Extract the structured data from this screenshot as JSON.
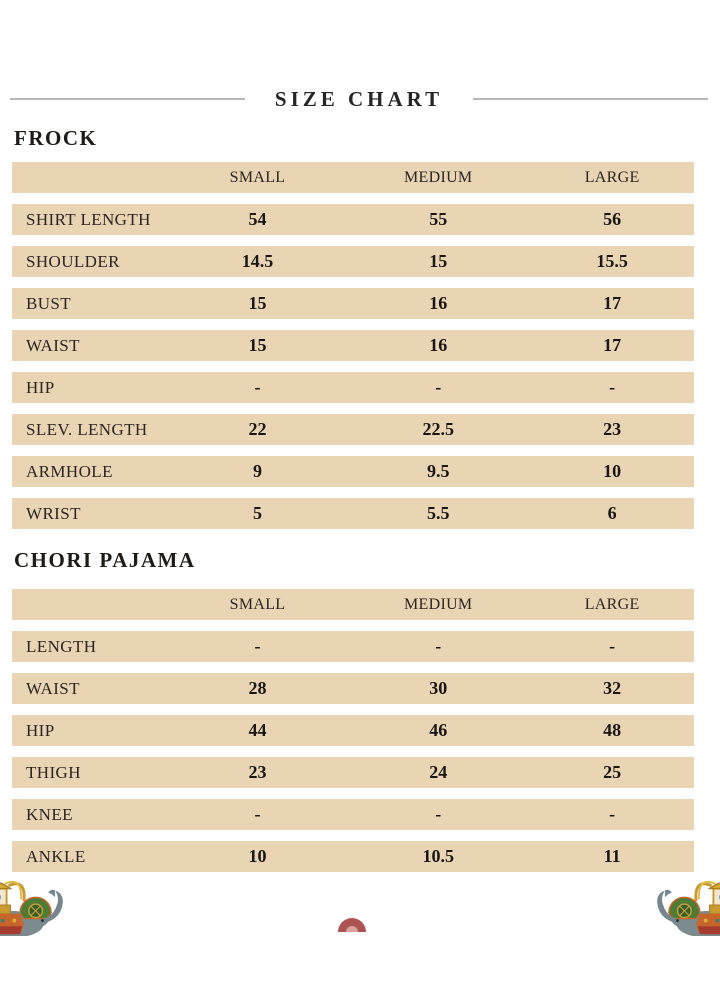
{
  "page": {
    "title": "SIZE CHART"
  },
  "colors": {
    "row_background": "#e9d4b4",
    "text": "#211d1a",
    "divider_line": "#b9b9b9",
    "fan_red": "#ae5353",
    "fan_inner_pink": "#d9a49e"
  },
  "sections": [
    {
      "heading": "FROCK",
      "columns": [
        "SMALL",
        "MEDIUM",
        "LARGE"
      ],
      "rows": [
        {
          "label": "SHIRT LENGTH",
          "values": [
            "54",
            "55",
            "56"
          ]
        },
        {
          "label": "SHOULDER",
          "values": [
            "14.5",
            "15",
            "15.5"
          ]
        },
        {
          "label": "BUST",
          "values": [
            "15",
            "16",
            "17"
          ]
        },
        {
          "label": "WAIST",
          "values": [
            "15",
            "16",
            "17"
          ]
        },
        {
          "label": "HIP",
          "values": [
            "-",
            "-",
            "-"
          ]
        },
        {
          "label": "SLEV. LENGTH",
          "values": [
            "22",
            "22.5",
            "23"
          ]
        },
        {
          "label": "ARMHOLE",
          "values": [
            "9",
            "9.5",
            "10"
          ]
        },
        {
          "label": "WRIST",
          "values": [
            "5",
            "5.5",
            "6"
          ]
        }
      ]
    },
    {
      "heading": "CHORI PAJAMA",
      "columns": [
        "SMALL",
        "MEDIUM",
        "LARGE"
      ],
      "rows": [
        {
          "label": "LENGTH",
          "values": [
            "-",
            "-",
            "-"
          ]
        },
        {
          "label": "WAIST",
          "values": [
            "28",
            "30",
            "32"
          ]
        },
        {
          "label": "HIP",
          "values": [
            "44",
            "46",
            "48"
          ]
        },
        {
          "label": "THIGH",
          "values": [
            "23",
            "24",
            "25"
          ]
        },
        {
          "label": "KNEE",
          "values": [
            "-",
            "-",
            "-"
          ]
        },
        {
          "label": "ANKLE",
          "values": [
            "10",
            "10.5",
            "11"
          ]
        }
      ]
    }
  ],
  "decorations": {
    "bottom_left": "decorated-elephant-illustration",
    "bottom_right": "decorated-elephant-illustration-mirrored",
    "bottom_center": "red-fan-ornament"
  }
}
